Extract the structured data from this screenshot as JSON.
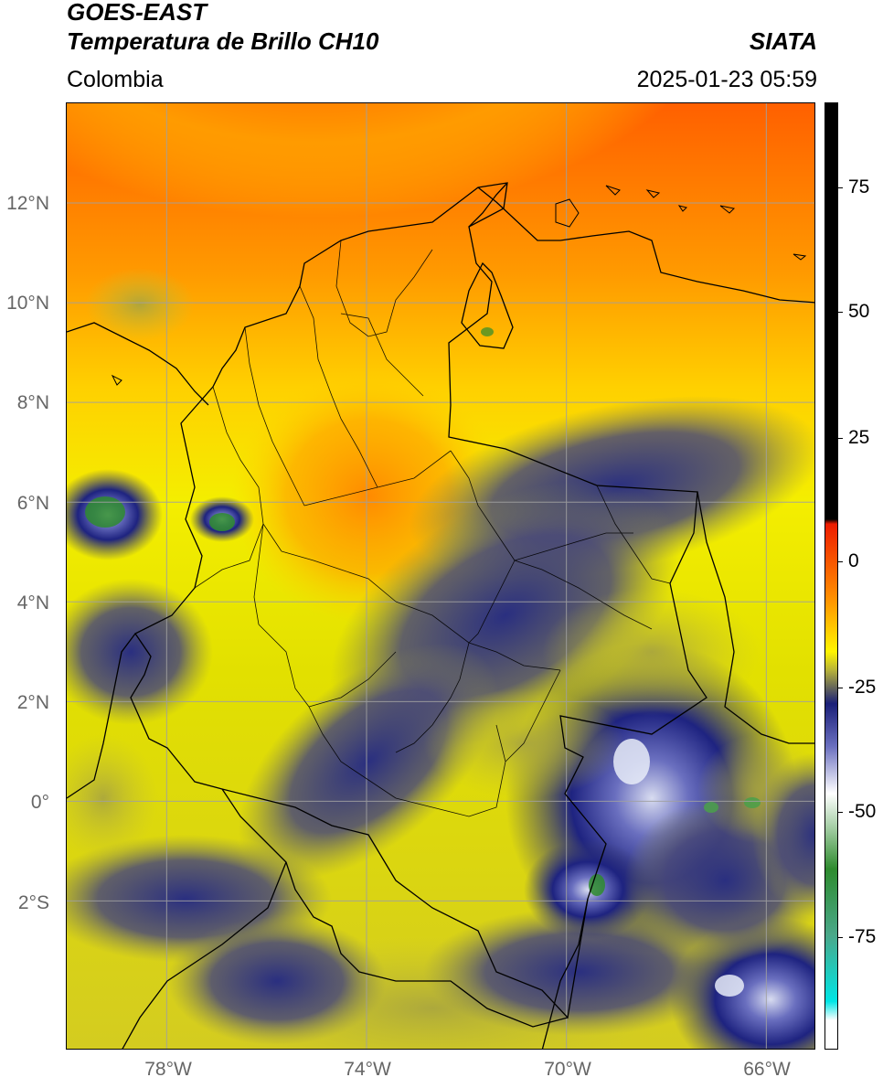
{
  "header": {
    "satellite": "GOES-EAST",
    "product": "Temperatura de Brillo CH10",
    "brand": "SIATA",
    "region": "Colombia",
    "datetime": "2025-01-23 05:59"
  },
  "map": {
    "lat_labels": [
      "12°N",
      "10°N",
      "8°N",
      "6°N",
      "4°N",
      "2°N",
      "0°",
      "2°S"
    ],
    "lon_labels": [
      "78°W",
      "74°W",
      "70°W",
      "66°W"
    ],
    "extent": {
      "lon_min": -80,
      "lon_max": -65,
      "lat_min": -5,
      "lat_max": 14
    },
    "gridline_color": "#a0a0a0"
  },
  "colorbar": {
    "labels": [
      "75",
      "50",
      "25",
      "0",
      "-25",
      "-50",
      "-75"
    ],
    "range": [
      -95,
      90
    ],
    "colors": {
      "hot": "#000000",
      "red": "#ee1c00",
      "orange": "#ff8a00",
      "yellow": "#fff500",
      "olive": "#b5b13a",
      "navy": "#1a1f78",
      "white": "#ffffff",
      "green": "#2e8b2e",
      "cyan": "#00e5e5"
    }
  }
}
